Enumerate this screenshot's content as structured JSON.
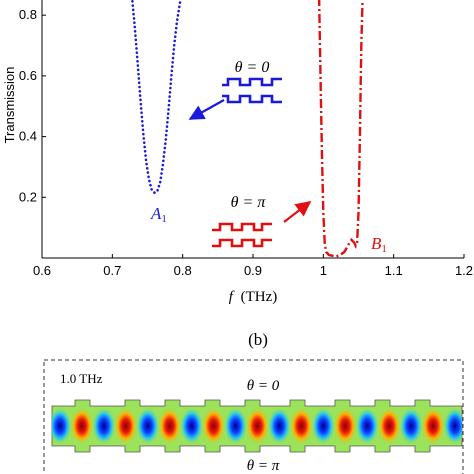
{
  "chart_data": {
    "type": "line",
    "xlabel_var": "f",
    "xlabel_unit": "(THz)",
    "ylabel": "Transmission",
    "xlim": [
      0.6,
      1.2
    ],
    "ylim": [
      0.0,
      0.85
    ],
    "x_ticks": [
      "0.6",
      "0.7",
      "0.8",
      "0.9",
      "1",
      "1.1",
      "1.2"
    ],
    "y_ticks": [
      "0.2",
      "0.4",
      "0.6",
      "0.8"
    ],
    "grid": false,
    "series": [
      {
        "color": "#1a1adb",
        "style": "dotted",
        "x": [
          0.728,
          0.732,
          0.736,
          0.74,
          0.744,
          0.748,
          0.752,
          0.756,
          0.76,
          0.764,
          0.768,
          0.772,
          0.776,
          0.78,
          0.784,
          0.788,
          0.792,
          0.796,
          0.8
        ],
        "y": [
          0.86,
          0.76,
          0.64,
          0.52,
          0.41,
          0.32,
          0.26,
          0.225,
          0.215,
          0.22,
          0.25,
          0.31,
          0.39,
          0.49,
          0.6,
          0.7,
          0.78,
          0.84,
          0.87
        ]
      },
      {
        "color": "#e01010",
        "style": "dashdot",
        "x": [
          0.994,
          0.996,
          0.998,
          1.0,
          1.002,
          1.004,
          1.008,
          1.012,
          1.018,
          1.024,
          1.03,
          1.036,
          1.04,
          1.044,
          1.046,
          1.048,
          1.05,
          1.052,
          1.054,
          1.056
        ],
        "y": [
          0.86,
          0.6,
          0.35,
          0.15,
          0.05,
          0.02,
          0.01,
          0.008,
          0.005,
          0.01,
          0.02,
          0.045,
          0.06,
          0.05,
          0.04,
          0.05,
          0.15,
          0.4,
          0.7,
          0.87
        ]
      }
    ],
    "annotations": {
      "theta0": "θ = 0",
      "thetaPi": "θ = π",
      "a_label": "A",
      "a_sub": "1",
      "b_label": "B",
      "b_sub": "1"
    }
  },
  "panel_b": {
    "label": "(b)",
    "freq_label": "1.0 THz",
    "theta0": "θ = 0",
    "thetaPi": "θ = π"
  },
  "colors": {
    "blue": "#1a1adb",
    "red": "#e01010"
  }
}
